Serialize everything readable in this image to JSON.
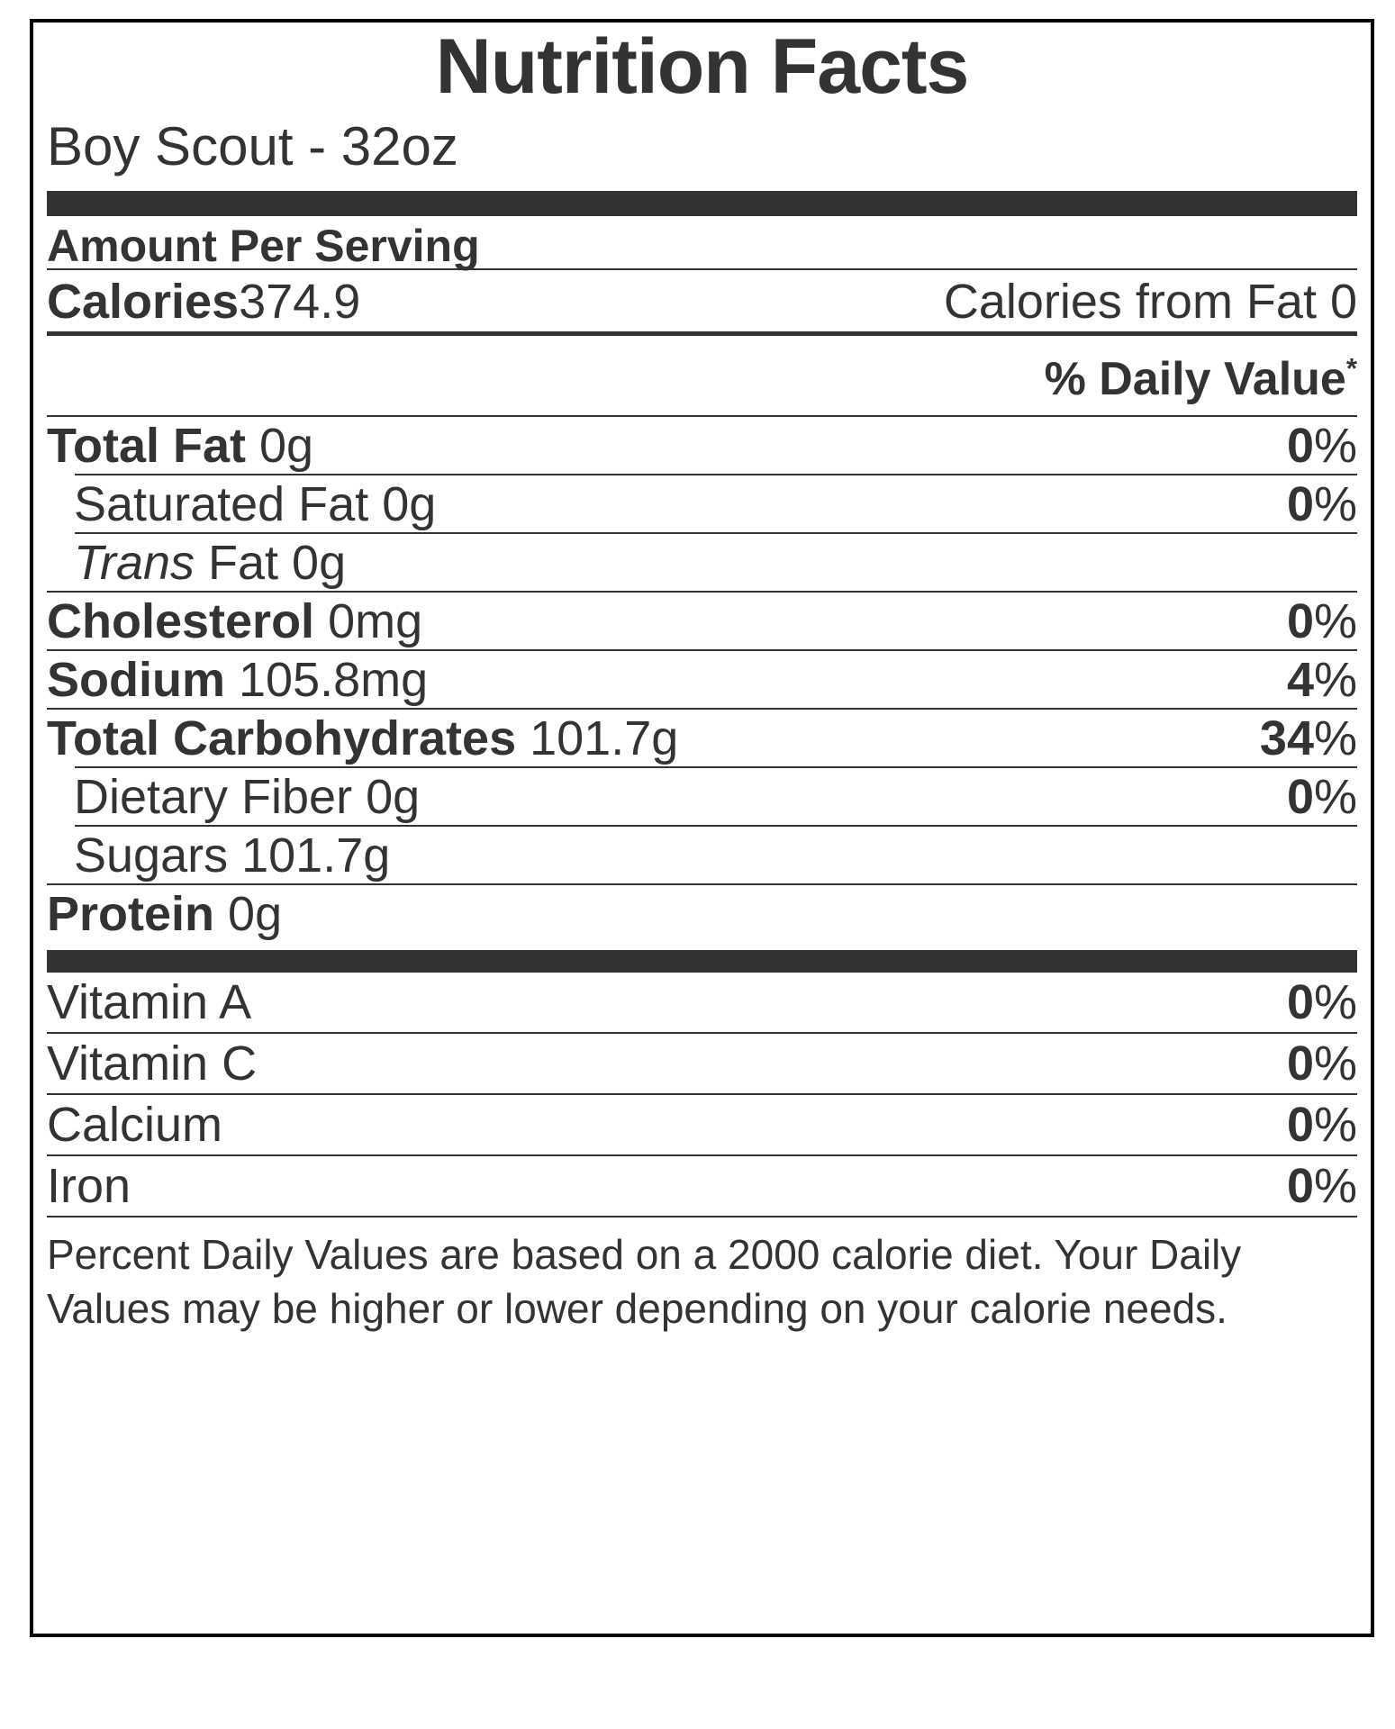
{
  "theme": {
    "text_color": "#333333",
    "bar_color": "#333333",
    "border_color": "#000000",
    "background_color": "#ffffff"
  },
  "header": {
    "title": "Nutrition Facts",
    "product": "Boy Scout - 32oz",
    "amount_per_serving": "Amount Per Serving",
    "calories_label": "Calories",
    "calories_value": "374.9",
    "calories_from_fat": "Calories from Fat 0",
    "daily_value_label": "% Daily Value",
    "daily_value_asterisk": "*"
  },
  "percent_sign": "%",
  "nutrients": [
    {
      "label_bold": "Total Fat",
      "label_regular": " 0g",
      "percent": "0"
    },
    {
      "label_regular": "Saturated Fat 0g",
      "percent": "0",
      "indent": true
    },
    {
      "label_italic": "Trans",
      "label_regular": " Fat 0g",
      "indent": true
    },
    {
      "label_bold": "Cholesterol",
      "label_regular": " 0mg",
      "percent": "0"
    },
    {
      "label_bold": "Sodium",
      "label_regular": " 105.8mg",
      "percent": "4"
    },
    {
      "label_bold": "Total Carbohydrates",
      "label_regular": " 101.7g",
      "percent": "34"
    },
    {
      "label_regular": "Dietary Fiber 0g",
      "percent": "0",
      "indent": true
    },
    {
      "label_regular": "Sugars 101.7g",
      "indent": true
    },
    {
      "label_bold": "Protein",
      "label_regular": " 0g"
    }
  ],
  "vitamins": [
    {
      "label": "Vitamin A",
      "percent": "0"
    },
    {
      "label": "Vitamin C",
      "percent": "0"
    },
    {
      "label": "Calcium",
      "percent": "0"
    },
    {
      "label": "Iron",
      "percent": "0"
    }
  ],
  "footnote": "Percent Daily Values are based on a 2000 calorie diet. Your Daily Values may be higher or lower depending on your calorie needs."
}
